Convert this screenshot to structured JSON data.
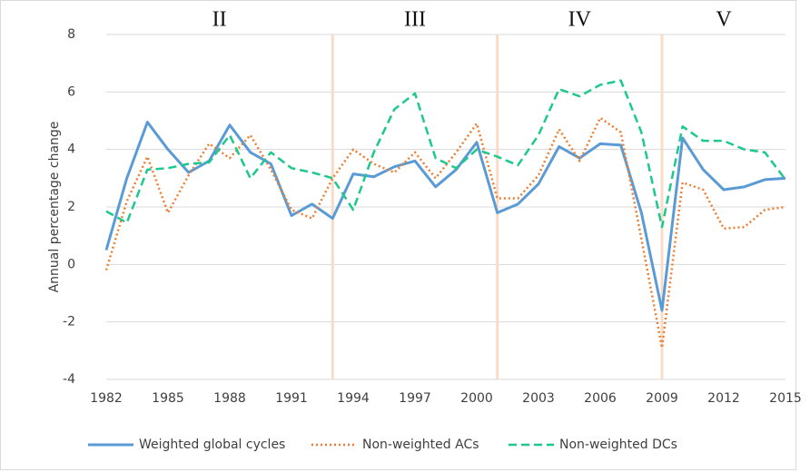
{
  "chart_data": {
    "type": "line",
    "y_label": "Annual percentage change",
    "x": [
      1982,
      1983,
      1984,
      1985,
      1986,
      1987,
      1988,
      1989,
      1990,
      1991,
      1992,
      1993,
      1994,
      1995,
      1996,
      1997,
      1998,
      1999,
      2000,
      2001,
      2002,
      2003,
      2004,
      2005,
      2006,
      2007,
      2008,
      2009,
      2010,
      2011,
      2012,
      2013,
      2014,
      2015
    ],
    "xlim": [
      1982,
      2015
    ],
    "xticks": [
      1982,
      1985,
      1988,
      1991,
      1994,
      1997,
      2000,
      2003,
      2006,
      2009,
      2012,
      2015
    ],
    "ylim": [
      -4,
      8
    ],
    "yticks": [
      -4,
      -2,
      0,
      2,
      4,
      6,
      8
    ],
    "grid": true,
    "legend": "bottom",
    "dividers": [
      1993,
      2001,
      2009
    ],
    "regions": [
      "II",
      "III",
      "IV",
      "V"
    ],
    "series": [
      {
        "name": "Weighted global cycles",
        "color": "#5b9bd5",
        "style": "solid",
        "values": [
          0.5,
          3.0,
          4.95,
          4.0,
          3.2,
          3.6,
          4.85,
          3.9,
          3.5,
          1.7,
          2.1,
          1.6,
          3.15,
          3.05,
          3.4,
          3.6,
          2.7,
          3.3,
          4.25,
          1.8,
          2.1,
          2.8,
          4.1,
          3.7,
          4.2,
          4.15,
          1.8,
          -1.6,
          4.4,
          3.3,
          2.6,
          2.7,
          2.95,
          3.0
        ]
      },
      {
        "name": "Non-weighted ACs",
        "color": "#ed7d31",
        "style": "dotted",
        "values": [
          -0.2,
          2.2,
          3.75,
          1.8,
          3.1,
          4.2,
          3.7,
          4.5,
          3.3,
          1.9,
          1.6,
          3.0,
          4.0,
          3.5,
          3.2,
          3.9,
          3.0,
          3.9,
          4.9,
          2.3,
          2.3,
          3.1,
          4.7,
          3.6,
          5.1,
          4.6,
          0.9,
          -2.9,
          2.85,
          2.6,
          1.25,
          1.3,
          1.9,
          2.0
        ]
      },
      {
        "name": "Non-weighted DCs",
        "color": "#1dc88c",
        "style": "dashed",
        "values": [
          1.85,
          1.45,
          3.3,
          3.35,
          3.5,
          3.55,
          4.5,
          3.0,
          3.9,
          3.35,
          3.2,
          3.0,
          1.9,
          3.9,
          5.4,
          5.95,
          3.7,
          3.35,
          4.0,
          3.75,
          3.45,
          4.5,
          6.1,
          5.85,
          6.25,
          6.4,
          4.6,
          1.3,
          4.8,
          4.3,
          4.3,
          4.0,
          3.9,
          2.95
        ]
      }
    ]
  }
}
